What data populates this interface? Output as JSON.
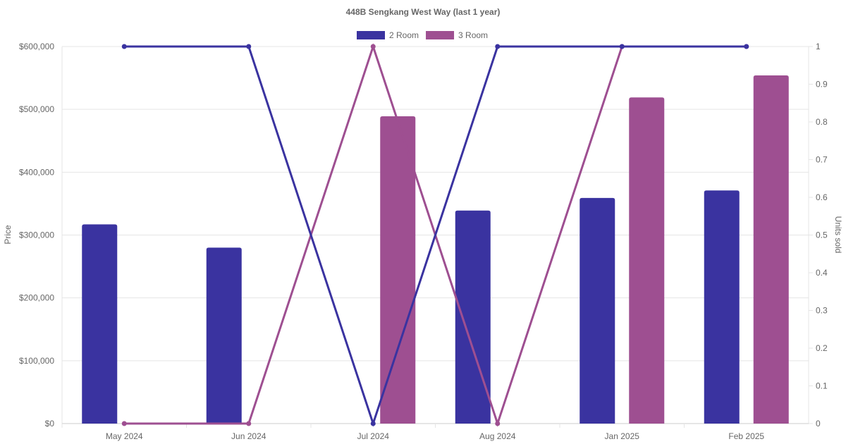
{
  "chart_data": {
    "type": "bar",
    "title": "448B Sengkang West Way (last 1 year)",
    "categories": [
      "May 2024",
      "Jun 2024",
      "Jul 2024",
      "Aug 2024",
      "Jan 2025",
      "Feb 2025"
    ],
    "ylabel": "Price",
    "y2label": "Units sold",
    "ylim": [
      0,
      600000
    ],
    "y2lim": [
      0,
      1
    ],
    "yticks": [
      "$0",
      "$100,000",
      "$200,000",
      "$300,000",
      "$400,000",
      "$500,000",
      "$600,000"
    ],
    "y2ticks": [
      "0",
      "0.1",
      "0.2",
      "0.3",
      "0.4",
      "0.5",
      "0.6",
      "0.7",
      "0.8",
      "0.9",
      "1"
    ],
    "legend_position": "top",
    "grid": true,
    "series": [
      {
        "name": "2 Room",
        "color": "#3a33a0",
        "bar_values": [
          317000,
          280000,
          null,
          339000,
          359000,
          371000
        ],
        "units_sold": [
          1,
          1,
          0,
          1,
          1,
          1
        ]
      },
      {
        "name": "3 Room",
        "color": "#9e4f91",
        "bar_values": [
          null,
          null,
          489000,
          null,
          519000,
          554000
        ],
        "units_sold": [
          0,
          0,
          1,
          0,
          1,
          1
        ]
      }
    ]
  }
}
